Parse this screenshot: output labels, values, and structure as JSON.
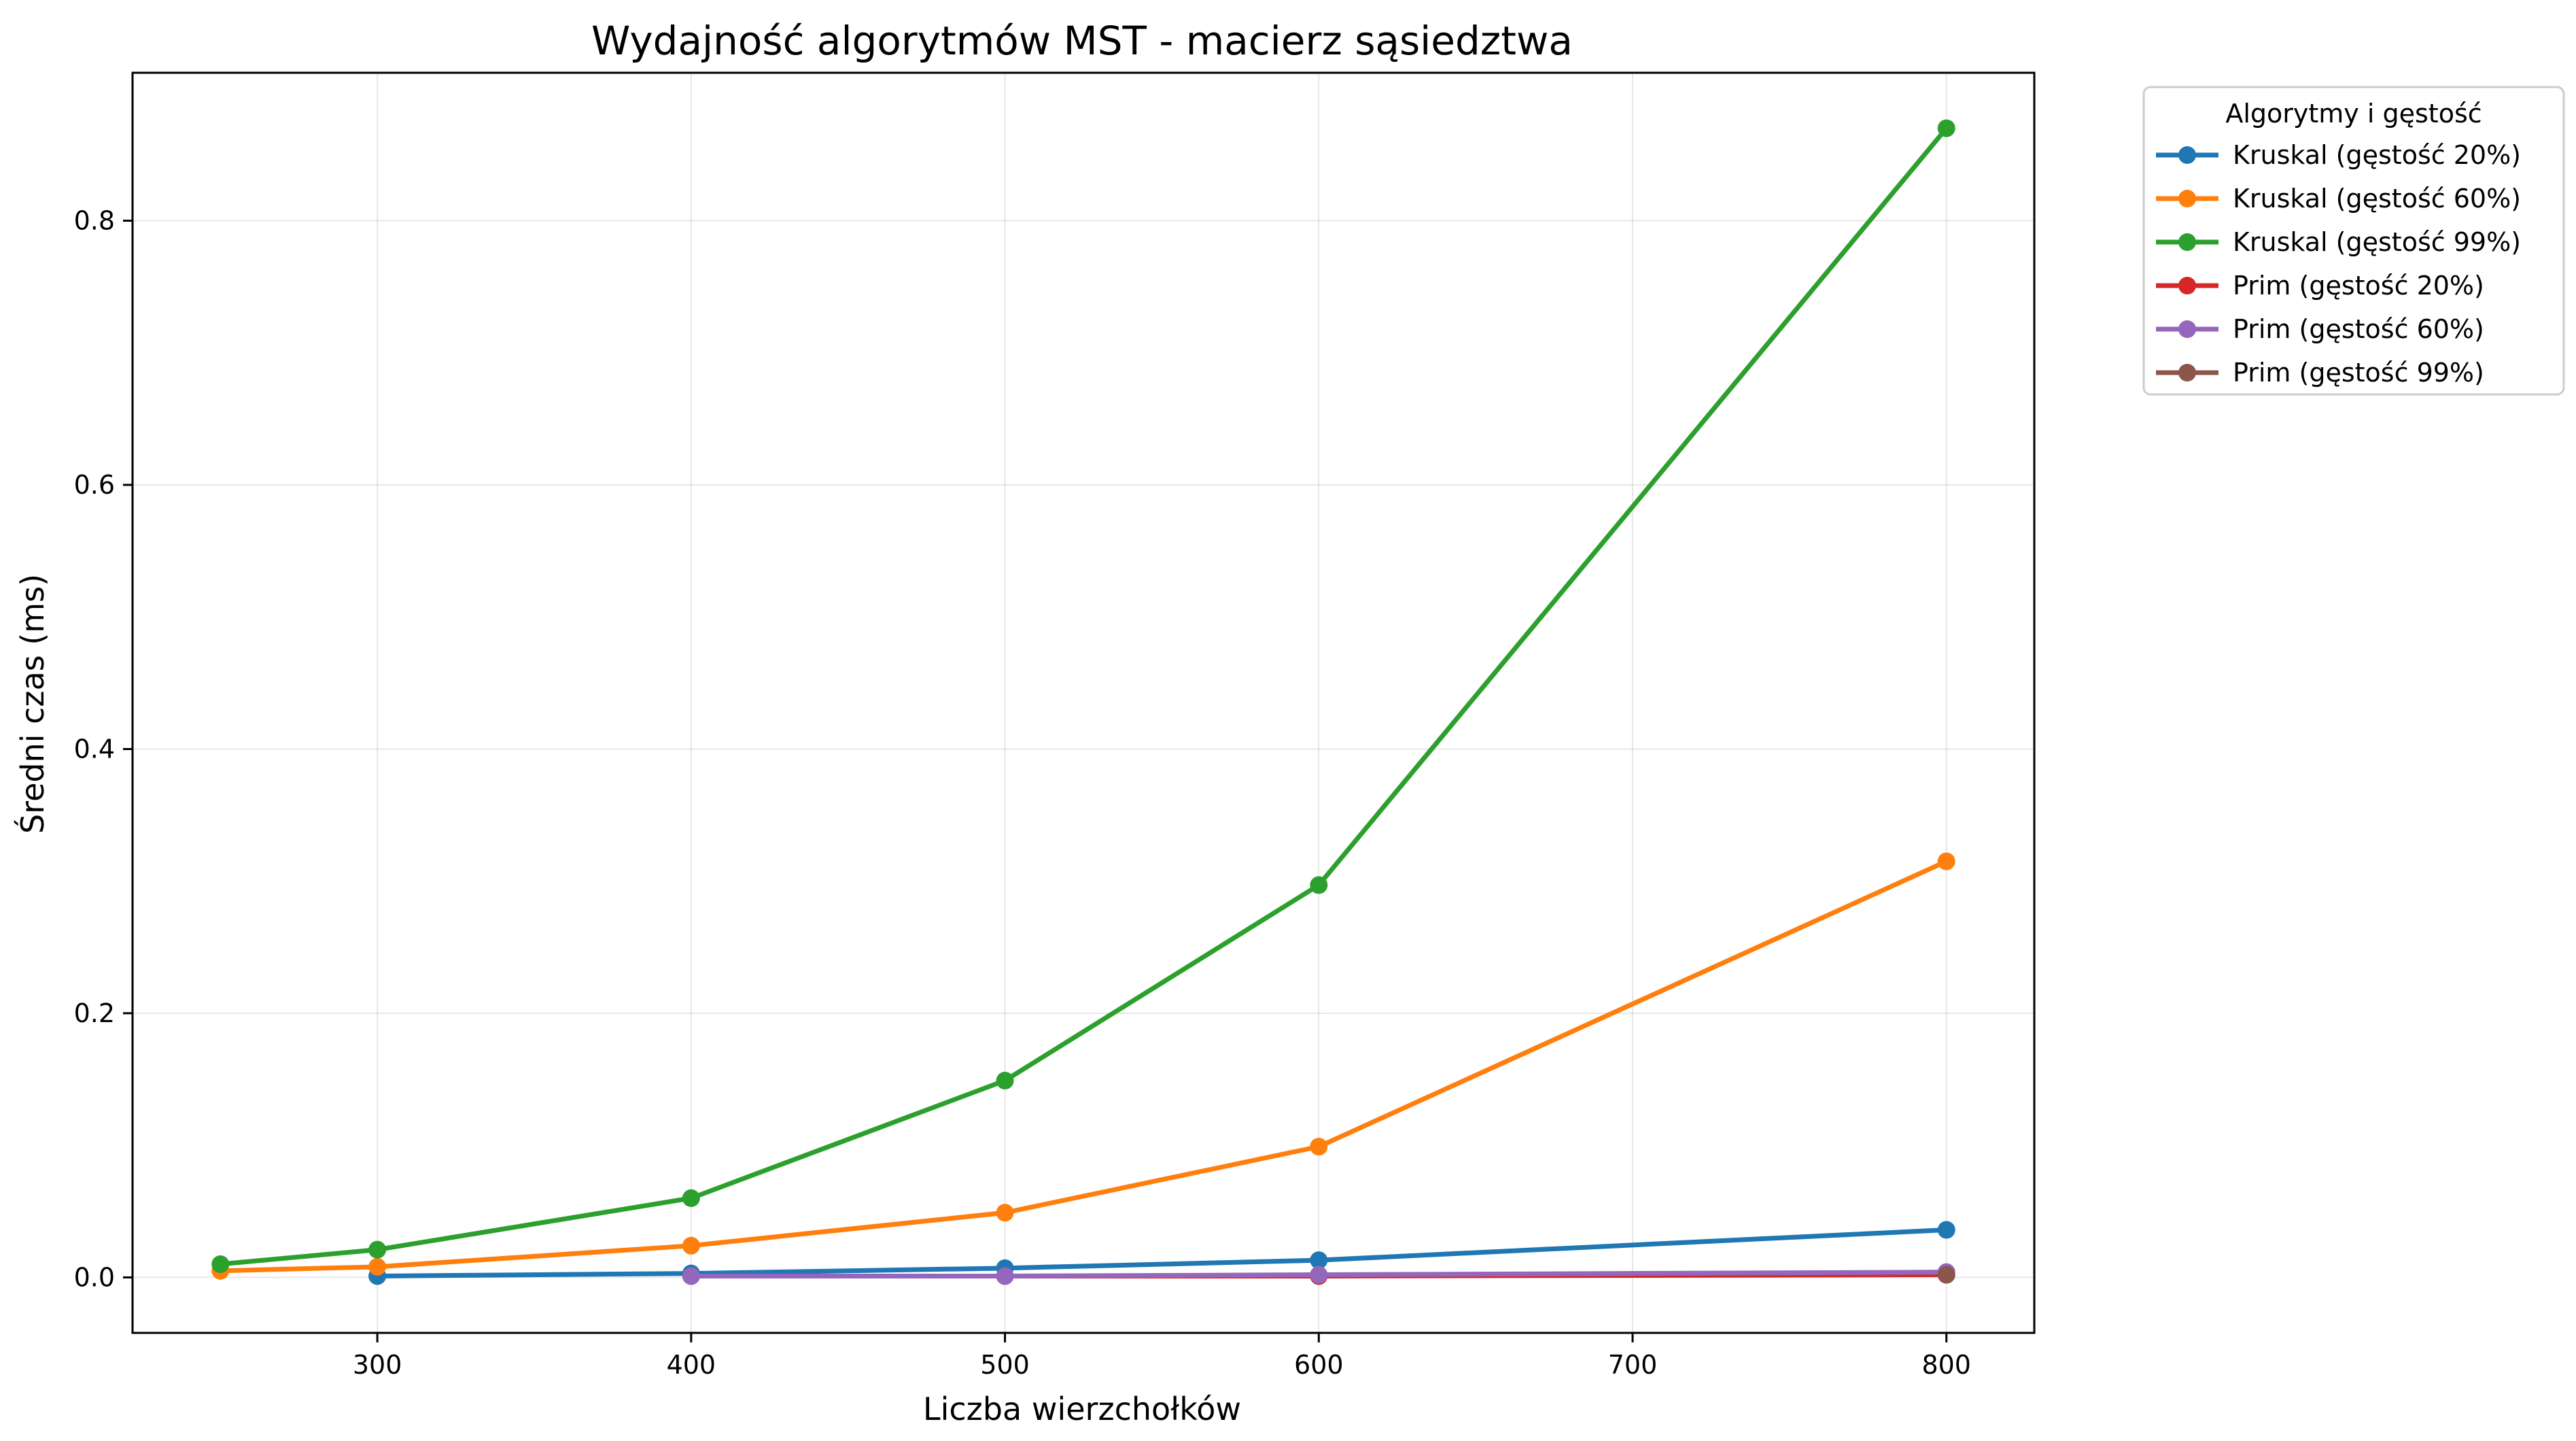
{
  "chart_data": {
    "type": "line",
    "title": "Wydajność algorytmów MST - macierz sąsiedztwa",
    "xlabel": "Liczba wierzchołków",
    "ylabel": "Średni czas (ms)",
    "xlim": [
      222,
      828
    ],
    "ylim": [
      -0.042,
      0.912
    ],
    "xticks": [
      300,
      400,
      500,
      600,
      700,
      800
    ],
    "yticks": [
      0.0,
      0.2,
      0.4,
      0.6,
      0.8
    ],
    "xtick_labels": [
      "300",
      "400",
      "500",
      "600",
      "700",
      "800"
    ],
    "ytick_labels": [
      "0.0",
      "0.2",
      "0.4",
      "0.6",
      "0.8"
    ],
    "grid": true,
    "legend_title": "Algorytmy i gęstość",
    "legend_placement": "outside-top-right",
    "series": [
      {
        "name": "Kruskal (gęstość 20%)",
        "color": "#1f77b4",
        "x": [
          300,
          400,
          500,
          600,
          800
        ],
        "y": [
          0.001,
          0.003,
          0.007,
          0.013,
          0.036
        ]
      },
      {
        "name": "Kruskal (gęstość 60%)",
        "color": "#ff7f0e",
        "x": [
          250,
          300,
          400,
          500,
          600,
          800
        ],
        "y": [
          0.005,
          0.008,
          0.024,
          0.049,
          0.099,
          0.315
        ]
      },
      {
        "name": "Kruskal (gęstość 99%)",
        "color": "#2ca02c",
        "x": [
          250,
          300,
          400,
          500,
          600,
          800
        ],
        "y": [
          0.01,
          0.021,
          0.06,
          0.149,
          0.297,
          0.87
        ]
      },
      {
        "name": "Prim (gęstość 20%)",
        "color": "#d62728",
        "x": [
          400,
          500,
          600,
          800
        ],
        "y": [
          0.001,
          0.001,
          0.001,
          0.002
        ]
      },
      {
        "name": "Prim (gęstość 60%)",
        "color": "#9467bd",
        "x": [
          400,
          500,
          600,
          800
        ],
        "y": [
          0.001,
          0.001,
          0.002,
          0.004
        ]
      },
      {
        "name": "Prim (gęstość 99%)",
        "color": "#8c564b",
        "x": [
          800
        ],
        "y": [
          0.002
        ]
      }
    ]
  }
}
